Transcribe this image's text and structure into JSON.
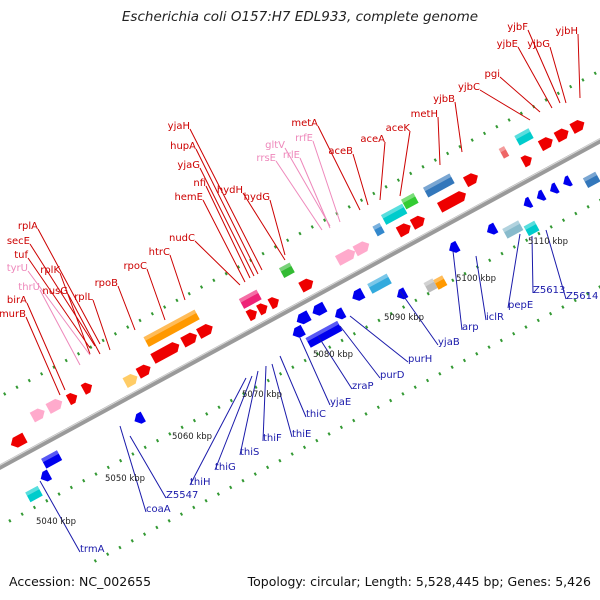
{
  "title": "Escherichia coli O157:H7 EDL933, complete genome",
  "footer": {
    "accession": "Accession: NC_002655",
    "summary": "Topology: circular; Length: 5,528,445 bp; Genes: 5,426"
  },
  "colors": {
    "forward_label": "#cc0000",
    "reverse_label": "#1a1aaa",
    "rna_label": "#ee88bb",
    "forward_gene": "#ee0000",
    "reverse_gene": "#0000ee",
    "backbone": "#999999",
    "tick_dot": "#339933"
  },
  "scale_ticks": [
    "5040 kbp",
    "5050 kbp",
    "5060 kbp",
    "5070 kbp",
    "5080 kbp",
    "5090 kbp",
    "5100 kbp",
    "5110 kbp"
  ],
  "forward_labels": [
    "yjbF",
    "yjbE",
    "yjbG",
    "yjbH",
    "pgi",
    "yjbC",
    "yjbB",
    "metH",
    "aceK",
    "aceA",
    "metA",
    "aceB",
    "hydH",
    "hydG",
    "yjaH",
    "hupA",
    "yjaG",
    "nfi",
    "hemE",
    "nudC",
    "htrC",
    "rpoC",
    "rpoB",
    "rplA",
    "secE",
    "tuf",
    "rplK",
    "nusG",
    "rplL",
    "birA",
    "murB"
  ],
  "rna_labels": [
    "rrfE",
    "gltV",
    "rrlE",
    "rrsE",
    "tyrU",
    "thrU"
  ],
  "reverse_labels": [
    "pepE",
    "Z5613",
    "Z5614",
    "iclR",
    "arp",
    "yjaB",
    "purH",
    "purD",
    "zraP",
    "yjaE",
    "thiC",
    "thiE",
    "thiF",
    "thiS",
    "thiG",
    "thiH",
    "Z5547",
    "coaA",
    "trmA"
  ]
}
